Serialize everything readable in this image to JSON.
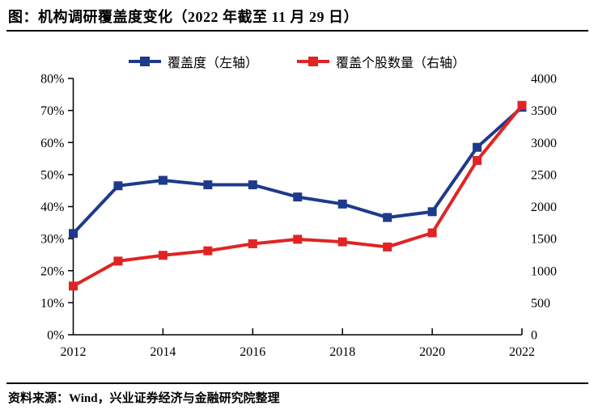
{
  "page": {
    "title": "图：机构调研覆盖度变化（2022 年截至 11 月 29 日）",
    "source": "资料来源：Wind，兴业证券经济与金融研究院整理"
  },
  "legend": {
    "items": [
      {
        "label": "覆盖度（左轴）",
        "color": "#1E3A8C"
      },
      {
        "label": "覆盖个股数量（右轴）",
        "color": "#E02424"
      }
    ]
  },
  "chart_data": {
    "type": "line",
    "title": "机构调研覆盖度变化（2022年截至11月29日）",
    "x": [
      2012,
      2013,
      2014,
      2015,
      2016,
      2017,
      2018,
      2019,
      2020,
      2021,
      2022
    ],
    "x_tick_labels": [
      "2012",
      "2014",
      "2016",
      "2018",
      "2020",
      "2022"
    ],
    "series": [
      {
        "name": "覆盖度（左轴）",
        "axis": "left",
        "color": "#1E3A8C",
        "marker": "square",
        "values": [
          31.6,
          46.5,
          48.2,
          46.8,
          46.8,
          43.0,
          40.8,
          36.6,
          38.4,
          58.5,
          71.0
        ]
      },
      {
        "name": "覆盖个股数量（右轴）",
        "axis": "right",
        "color": "#E02424",
        "marker": "square",
        "values": [
          760,
          1150,
          1240,
          1310,
          1420,
          1490,
          1450,
          1370,
          1590,
          2720,
          3580
        ]
      }
    ],
    "left_axis": {
      "min": 0,
      "max": 80,
      "step": 10,
      "unit": "%",
      "tick_labels": [
        "0%",
        "10%",
        "20%",
        "30%",
        "40%",
        "50%",
        "60%",
        "70%",
        "80%"
      ]
    },
    "right_axis": {
      "min": 0,
      "max": 4000,
      "step": 500,
      "tick_labels": [
        "0",
        "500",
        "1000",
        "1500",
        "2000",
        "2500",
        "3000",
        "3500",
        "4000"
      ]
    },
    "grid": false,
    "legend_position": "top"
  }
}
